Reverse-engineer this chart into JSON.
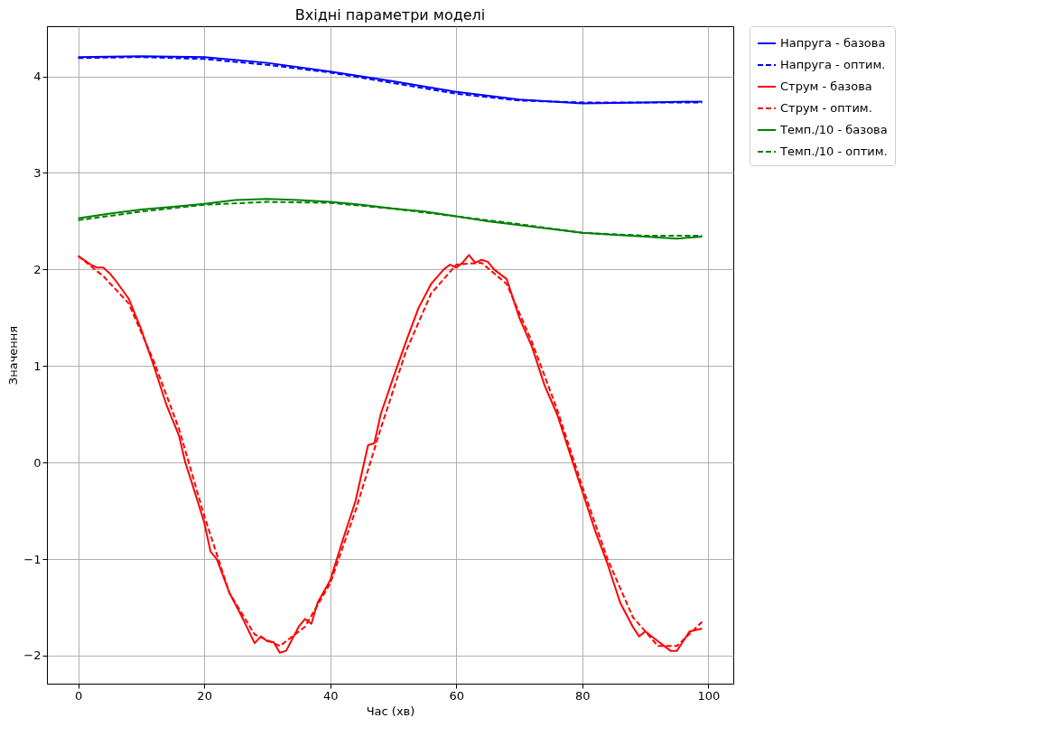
{
  "chart_data": {
    "type": "line",
    "title": "Вхідні параметри моделі",
    "xlabel": "Час (хв)",
    "ylabel": "Значення",
    "xlim": [
      -4.95,
      103.95
    ],
    "ylim": [
      -2.29,
      4.52
    ],
    "xticks": [
      0,
      20,
      40,
      60,
      80,
      100
    ],
    "yticks": [
      -2,
      -1,
      0,
      1,
      2,
      3,
      4
    ],
    "grid": true,
    "legend": "top right",
    "series": [
      {
        "name": "Напруга - базова",
        "color": "#0000ff",
        "line_style": "solid",
        "x": [
          0,
          10,
          20,
          30,
          40,
          50,
          60,
          70,
          80,
          90,
          99
        ],
        "values": [
          4.2,
          4.21,
          4.2,
          4.14,
          4.05,
          3.95,
          3.84,
          3.76,
          3.72,
          3.73,
          3.74
        ]
      },
      {
        "name": "Напруга - оптим.",
        "color": "#0000ff",
        "line_style": "dashed",
        "x": [
          0,
          10,
          20,
          30,
          40,
          50,
          60,
          70,
          80,
          90,
          99
        ],
        "values": [
          4.19,
          4.2,
          4.18,
          4.12,
          4.04,
          3.93,
          3.82,
          3.75,
          3.73,
          3.73,
          3.73
        ]
      },
      {
        "name": "Струм - базова",
        "color": "#ff0000",
        "line_style": "solid",
        "x": [
          0,
          2,
          3,
          4,
          5,
          6,
          8,
          10,
          12,
          14,
          16,
          17,
          18,
          20,
          21,
          22,
          24,
          26,
          28,
          29,
          30,
          31,
          32,
          33,
          35,
          36,
          37,
          38,
          40,
          42,
          44,
          46,
          47,
          48,
          50,
          52,
          54,
          56,
          58,
          59,
          60,
          61,
          62,
          63,
          64,
          65,
          66,
          68,
          70,
          72,
          74,
          76,
          78,
          80,
          82,
          84,
          86,
          88,
          89,
          90,
          92,
          94,
          95,
          96,
          97,
          99
        ],
        "values": [
          2.14,
          2.05,
          2.02,
          2.02,
          1.96,
          1.88,
          1.7,
          1.38,
          1.0,
          0.6,
          0.28,
          0.0,
          -0.2,
          -0.62,
          -0.92,
          -1.0,
          -1.35,
          -1.6,
          -1.87,
          -1.8,
          -1.85,
          -1.86,
          -1.97,
          -1.95,
          -1.7,
          -1.62,
          -1.67,
          -1.45,
          -1.22,
          -0.8,
          -0.4,
          0.18,
          0.2,
          0.5,
          0.88,
          1.25,
          1.6,
          1.85,
          2.0,
          2.05,
          2.02,
          2.07,
          2.15,
          2.07,
          2.1,
          2.08,
          2.0,
          1.9,
          1.5,
          1.2,
          0.8,
          0.5,
          0.1,
          -0.3,
          -0.7,
          -1.05,
          -1.45,
          -1.7,
          -1.8,
          -1.75,
          -1.85,
          -1.95,
          -1.95,
          -1.85,
          -1.75,
          -1.72
        ]
      },
      {
        "name": "Струм - оптим.",
        "color": "#ff0000",
        "line_style": "dashed",
        "x": [
          0,
          4,
          8,
          12,
          16,
          20,
          24,
          28,
          32,
          36,
          40,
          44,
          48,
          52,
          56,
          60,
          64,
          68,
          72,
          76,
          80,
          84,
          88,
          92,
          95,
          99
        ],
        "values": [
          2.14,
          1.93,
          1.65,
          1.05,
          0.35,
          -0.55,
          -1.35,
          -1.78,
          -1.9,
          -1.7,
          -1.25,
          -0.5,
          0.35,
          1.15,
          1.75,
          2.05,
          2.07,
          1.85,
          1.25,
          0.55,
          -0.25,
          -1.0,
          -1.6,
          -1.9,
          -1.9,
          -1.65
        ]
      },
      {
        "name": "Темп./10 - базова",
        "color": "#008000",
        "line_style": "solid",
        "x": [
          0,
          5,
          10,
          15,
          20,
          25,
          30,
          35,
          40,
          45,
          50,
          55,
          60,
          65,
          70,
          75,
          80,
          85,
          90,
          95,
          99
        ],
        "values": [
          2.53,
          2.58,
          2.62,
          2.65,
          2.68,
          2.72,
          2.73,
          2.72,
          2.7,
          2.67,
          2.63,
          2.6,
          2.55,
          2.5,
          2.46,
          2.42,
          2.38,
          2.36,
          2.34,
          2.32,
          2.34
        ]
      },
      {
        "name": "Темп./10 - оптим.",
        "color": "#008000",
        "line_style": "dashed",
        "x": [
          0,
          10,
          20,
          30,
          40,
          50,
          60,
          70,
          80,
          90,
          99
        ],
        "values": [
          2.51,
          2.6,
          2.67,
          2.7,
          2.69,
          2.63,
          2.55,
          2.47,
          2.38,
          2.35,
          2.35
        ]
      }
    ]
  }
}
